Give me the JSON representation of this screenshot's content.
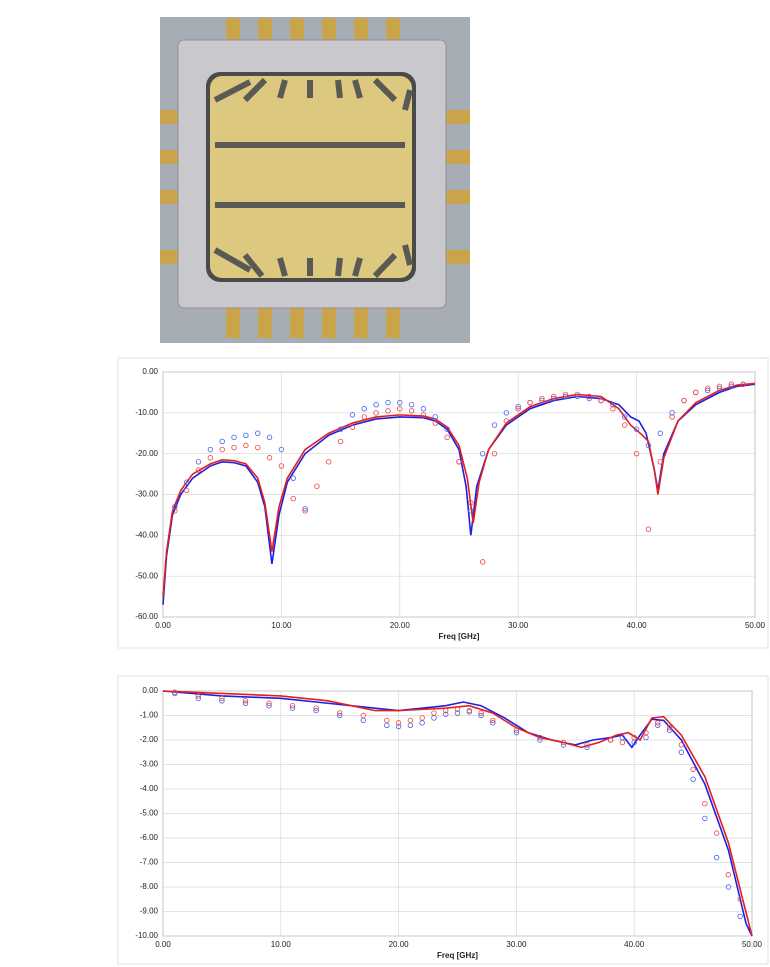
{
  "chart_data": [
    {
      "type": "line",
      "xlabel": "Freq [GHz]",
      "grid": true,
      "xlim": [
        0,
        50
      ],
      "ylim": [
        -60,
        0
      ],
      "xticks": [
        {
          "value": 0,
          "label": "0.00"
        },
        {
          "value": 10,
          "label": "10.00"
        },
        {
          "value": 20,
          "label": "20.00"
        },
        {
          "value": 30,
          "label": "30.00"
        },
        {
          "value": 40,
          "label": "40.00"
        },
        {
          "value": 50,
          "label": "50.00"
        }
      ],
      "yticks": [
        {
          "value": -60,
          "label": "-60.00"
        },
        {
          "value": -50,
          "label": "-50.00"
        },
        {
          "value": -40,
          "label": "-40.00"
        },
        {
          "value": -30,
          "label": "-30.00"
        },
        {
          "value": -20,
          "label": "-20.00"
        },
        {
          "value": -10,
          "label": "-10.00"
        },
        {
          "value": 0,
          "label": "0.00"
        }
      ],
      "series": [
        {
          "color": "#1f1fe0",
          "mode": "line",
          "x": [
            0,
            0.3,
            0.8,
            1.5,
            2.5,
            4,
            5,
            6,
            7,
            8,
            8.6,
            9.2,
            9.8,
            10.5,
            12,
            14,
            16,
            18,
            20,
            22,
            23,
            24,
            25,
            25.6,
            26,
            26.5,
            27.5,
            29,
            31,
            33,
            35,
            37,
            38.5,
            39.5,
            40.2,
            40.8,
            41.5,
            41.8,
            42.3,
            43.5,
            45,
            47,
            48.5,
            50
          ],
          "values": [
            -57,
            -45,
            -35,
            -30,
            -26,
            -23,
            -22,
            -22.2,
            -23,
            -27,
            -33,
            -47,
            -35,
            -27,
            -20,
            -15.5,
            -13,
            -11.5,
            -11,
            -11.2,
            -12,
            -14,
            -19,
            -28,
            -40,
            -28,
            -19,
            -13,
            -9,
            -7,
            -6,
            -6.5,
            -8,
            -11,
            -12,
            -15,
            -24,
            -29,
            -20,
            -12,
            -8,
            -5,
            -3.5,
            -3
          ]
        },
        {
          "color": "#e02020",
          "mode": "line",
          "x": [
            0,
            0.3,
            0.8,
            1.5,
            2.5,
            4,
            5,
            6,
            7,
            8,
            8.6,
            9.2,
            9.8,
            10.5,
            12,
            14,
            16,
            18,
            20,
            22,
            23,
            24,
            25,
            25.7,
            26.2,
            26.7,
            27.5,
            29,
            31,
            33,
            35,
            37,
            38.5,
            39.5,
            40.5,
            41,
            41.5,
            41.8,
            42.3,
            43.5,
            45,
            47,
            48.5,
            50
          ],
          "values": [
            -55,
            -44,
            -34,
            -29,
            -25,
            -22.5,
            -21.5,
            -21.7,
            -22.5,
            -26,
            -32,
            -44,
            -33,
            -26,
            -19,
            -15,
            -12.5,
            -11,
            -10.5,
            -10.8,
            -11.5,
            -13.5,
            -18,
            -26,
            -37,
            -27,
            -19,
            -12.5,
            -8.5,
            -6.5,
            -5.5,
            -6,
            -9,
            -13,
            -15.5,
            -17,
            -24,
            -30,
            -21,
            -12,
            -7.5,
            -4.5,
            -3.2,
            -2.8
          ]
        },
        {
          "color": "#4060f0",
          "mode": "markers",
          "x": [
            1,
            2,
            3,
            4,
            5,
            6,
            7,
            8,
            9,
            10,
            11,
            12,
            15,
            16,
            17,
            18,
            19,
            20,
            21,
            22,
            23,
            24,
            25,
            26,
            27,
            28,
            29,
            30,
            31,
            32,
            33,
            34,
            35,
            36,
            37,
            38,
            39,
            40,
            41,
            42,
            43,
            44,
            45,
            46,
            47,
            48,
            49
          ],
          "values": [
            -33,
            -27,
            -22,
            -19,
            -17,
            -16,
            -15.5,
            -15,
            -16,
            -19,
            -26,
            -33.5,
            -14,
            -10.5,
            -9,
            -8,
            -7.5,
            -7.5,
            -8,
            -9,
            -11,
            -14,
            -22,
            -34,
            -20,
            -13,
            -10,
            -8.5,
            -7.5,
            -7,
            -6.5,
            -6,
            -6,
            -6.5,
            -7,
            -8,
            -11,
            -14,
            -18,
            -15,
            -10,
            -7,
            -5,
            -4.5,
            -4,
            -3.5,
            -3
          ]
        },
        {
          "color": "#f04040",
          "mode": "markers",
          "x": [
            1,
            2,
            3,
            4,
            5,
            6,
            7,
            8,
            9,
            10,
            11,
            12,
            13,
            14,
            15,
            16,
            17,
            18,
            19,
            20,
            21,
            22,
            23,
            24,
            25,
            26,
            27,
            28,
            29,
            30,
            31,
            32,
            33,
            34,
            35,
            36,
            37,
            38,
            39,
            40,
            41,
            42,
            43,
            44,
            45,
            46,
            47,
            48,
            49
          ],
          "values": [
            -34,
            -29,
            -24,
            -21,
            -19,
            -18.5,
            -18,
            -18.5,
            -21,
            -23,
            -31,
            -34,
            -28,
            -22,
            -17,
            -13.5,
            -11,
            -10,
            -9.5,
            -9,
            -9.5,
            -10.5,
            -12.5,
            -16,
            -22,
            -32,
            -46.5,
            -20,
            -12,
            -9,
            -7.5,
            -6.5,
            -6,
            -5.5,
            -5.5,
            -6,
            -7,
            -9,
            -13,
            -20,
            -38.5,
            -22,
            -11,
            -7,
            -5,
            -4,
            -3.5,
            -3,
            -3
          ]
        }
      ]
    },
    {
      "type": "line",
      "xlabel": "Freq [GHz]",
      "grid": true,
      "xlim": [
        0,
        50
      ],
      "ylim": [
        -10,
        0
      ],
      "xticks": [
        {
          "value": 0,
          "label": "0.00"
        },
        {
          "value": 10,
          "label": "10.00"
        },
        {
          "value": 20,
          "label": "20.00"
        },
        {
          "value": 30,
          "label": "30.00"
        },
        {
          "value": 40,
          "label": "40.00"
        },
        {
          "value": 50,
          "label": "50.00"
        }
      ],
      "yticks": [
        {
          "value": -10,
          "label": "-10.00"
        },
        {
          "value": -9,
          "label": "-9.00"
        },
        {
          "value": -8,
          "label": "-8.00"
        },
        {
          "value": -7,
          "label": "-7.00"
        },
        {
          "value": -6,
          "label": "-6.00"
        },
        {
          "value": -5,
          "label": "-5.00"
        },
        {
          "value": -4,
          "label": "-4.00"
        },
        {
          "value": -3,
          "label": "-3.00"
        },
        {
          "value": -2,
          "label": "-2.00"
        },
        {
          "value": -1,
          "label": "-1.00"
        },
        {
          "value": 0,
          "label": "0.00"
        }
      ],
      "series": [
        {
          "color": "#1f1fe0",
          "mode": "line",
          "x": [
            0,
            5,
            10,
            14,
            18,
            20,
            22,
            24,
            25.5,
            27,
            29,
            31,
            33,
            35,
            36.5,
            38,
            39,
            39.8,
            40.5,
            41.5,
            42.5,
            44,
            46,
            48,
            49.5,
            50
          ],
          "values": [
            0,
            -0.2,
            -0.3,
            -0.5,
            -0.7,
            -0.8,
            -0.7,
            -0.6,
            -0.45,
            -0.6,
            -1.1,
            -1.7,
            -2.0,
            -2.2,
            -2.0,
            -1.9,
            -1.8,
            -2.3,
            -1.8,
            -1.15,
            -1.2,
            -2.0,
            -3.8,
            -6.5,
            -9.5,
            -10
          ]
        },
        {
          "color": "#e02020",
          "mode": "line",
          "x": [
            0,
            5,
            10,
            14,
            18,
            20,
            22,
            24,
            26,
            28,
            30,
            32,
            34,
            35.5,
            37,
            38.5,
            39.5,
            40.5,
            41.5,
            42.5,
            44,
            46,
            48,
            50
          ],
          "values": [
            0,
            -0.1,
            -0.2,
            -0.4,
            -0.8,
            -0.8,
            -0.75,
            -0.7,
            -0.6,
            -0.9,
            -1.5,
            -1.9,
            -2.1,
            -2.3,
            -2.1,
            -1.8,
            -1.7,
            -2.0,
            -1.1,
            -1.05,
            -1.8,
            -3.5,
            -6.2,
            -10
          ]
        },
        {
          "color": "#4060f0",
          "mode": "markers",
          "x": [
            1,
            3,
            5,
            7,
            9,
            11,
            13,
            15,
            17,
            19,
            20,
            21,
            22,
            23,
            24,
            25,
            26,
            27,
            28,
            30,
            32,
            34,
            36,
            38,
            39,
            40,
            41,
            42,
            43,
            44,
            45,
            46,
            47,
            48,
            49
          ],
          "values": [
            -0.1,
            -0.3,
            -0.4,
            -0.5,
            -0.6,
            -0.7,
            -0.8,
            -1.0,
            -1.2,
            -1.4,
            -1.45,
            -1.4,
            -1.3,
            -1.1,
            -0.95,
            -0.9,
            -0.85,
            -1.0,
            -1.3,
            -1.7,
            -2.0,
            -2.2,
            -2.3,
            -2.0,
            -1.9,
            -2.1,
            -1.9,
            -1.4,
            -1.6,
            -2.5,
            -3.6,
            -5.2,
            -6.8,
            -8.0,
            -9.2
          ]
        },
        {
          "color": "#f04040",
          "mode": "markers",
          "x": [
            1,
            3,
            5,
            7,
            9,
            11,
            13,
            15,
            17,
            19,
            20,
            21,
            22,
            23,
            24,
            25,
            26,
            27,
            28,
            30,
            32,
            34,
            36,
            38,
            39,
            40,
            41,
            42,
            43,
            44,
            45,
            46,
            47,
            48,
            49
          ],
          "values": [
            -0.05,
            -0.2,
            -0.3,
            -0.4,
            -0.5,
            -0.6,
            -0.7,
            -0.9,
            -1.0,
            -1.2,
            -1.3,
            -1.2,
            -1.1,
            -0.9,
            -0.8,
            -0.75,
            -0.8,
            -0.9,
            -1.2,
            -1.6,
            -1.9,
            -2.1,
            -2.2,
            -2.0,
            -2.1,
            -1.9,
            -1.7,
            -1.3,
            -1.5,
            -2.2,
            -3.2,
            -4.6,
            -5.8,
            -7.5,
            -8.5
          ]
        }
      ]
    }
  ]
}
